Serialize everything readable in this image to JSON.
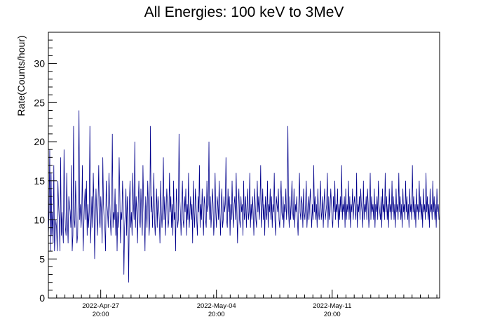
{
  "chart_data": {
    "type": "line",
    "title": "All Energies:  100 keV to 3MeV",
    "xlabel": "",
    "ylabel": "Rate(Counts/hour)",
    "ylim": [
      0,
      34
    ],
    "y_ticks": [
      0,
      5,
      10,
      15,
      20,
      25,
      30
    ],
    "x_range": [
      "2022-Apr-24 16:00",
      "2022-May-18 08:00"
    ],
    "x_ticks": [
      {
        "date": "2022-Apr-27",
        "time": "20:00"
      },
      {
        "date": "2022-May-04",
        "time": "20:00"
      },
      {
        "date": "2022-May-11",
        "time": "20:00"
      }
    ],
    "grid": false,
    "legend": "none",
    "colors": {
      "series": "#00008b",
      "axes": "#000000"
    },
    "series": [
      {
        "x_start": "2022-Apr-24 16:00",
        "x_step": "hour",
        "values": [
          8,
          11,
          19,
          6,
          16,
          8,
          11,
          7,
          17,
          6,
          8,
          10,
          9,
          6,
          15,
          12,
          10,
          6,
          18,
          8,
          11,
          9,
          7,
          19,
          12,
          9,
          8,
          16,
          10,
          7,
          13,
          12,
          11,
          9,
          17,
          6,
          8,
          22,
          10,
          9,
          15,
          11,
          7,
          8,
          14,
          24,
          10,
          12,
          9,
          11,
          17,
          6,
          9,
          12,
          14,
          10,
          15,
          8,
          12,
          9,
          11,
          22,
          7,
          10,
          13,
          9,
          16,
          12,
          5,
          10,
          14,
          11,
          8,
          12,
          17,
          10,
          9,
          13,
          11,
          7,
          18,
          12,
          10,
          9,
          6,
          15,
          12,
          11,
          9,
          16,
          13,
          10,
          8,
          12,
          21,
          9,
          11,
          10,
          14,
          8,
          12,
          6,
          11,
          9,
          18,
          13,
          7,
          11,
          10,
          15,
          12,
          3,
          9,
          11,
          14,
          8,
          13,
          10,
          2,
          12,
          15,
          9,
          11,
          8,
          16,
          12,
          10,
          20,
          9,
          13,
          11,
          7,
          12,
          15,
          10,
          9,
          14,
          11,
          8,
          17,
          12,
          10,
          6,
          13,
          11,
          9,
          15,
          12,
          8,
          10,
          22,
          11,
          13,
          9,
          12,
          16,
          10,
          8,
          11,
          14,
          9,
          13,
          12,
          10,
          7,
          15,
          11,
          9,
          12,
          18,
          10,
          13,
          8,
          11,
          14,
          12,
          9,
          10,
          16,
          11,
          13,
          9,
          12,
          8,
          15,
          10,
          11,
          6,
          14,
          12,
          9,
          10,
          21,
          13,
          11,
          8,
          12,
          15,
          10,
          9,
          13,
          11,
          14,
          8,
          12,
          10,
          16,
          9,
          11,
          13,
          10,
          12,
          7,
          15,
          11,
          9,
          14,
          12,
          10,
          8,
          13,
          11,
          17,
          9,
          12,
          10,
          14,
          11,
          8,
          13,
          12,
          10,
          9,
          15,
          11,
          12,
          20,
          10,
          13,
          9,
          11,
          14,
          12,
          8,
          10,
          16,
          11,
          9,
          13,
          12,
          10,
          15,
          11,
          8,
          12,
          14,
          9,
          10,
          13,
          11,
          12,
          18,
          10,
          9,
          14,
          11,
          13,
          8,
          12,
          10,
          15,
          11,
          9,
          12,
          13,
          10,
          16,
          11,
          7,
          12,
          14,
          10,
          9,
          13,
          11,
          12,
          8,
          15,
          10,
          11,
          13,
          9,
          12,
          14,
          10,
          11,
          16,
          9,
          12,
          10,
          13,
          11,
          8,
          14,
          12,
          10,
          9,
          15,
          11,
          13,
          10,
          12,
          17,
          9,
          11,
          14,
          10,
          12,
          8,
          13,
          11,
          10,
          15,
          9,
          12,
          11,
          14,
          10,
          13,
          9,
          12,
          11,
          16,
          10,
          8,
          13,
          12,
          11,
          14,
          10,
          9,
          12,
          15,
          11,
          10,
          13,
          9,
          12,
          11,
          14,
          10,
          12,
          22,
          11,
          9,
          13,
          10,
          12,
          15,
          11,
          10,
          14,
          9,
          12,
          11,
          13,
          10,
          8,
          12,
          16,
          11,
          10,
          13,
          12,
          9,
          14,
          11,
          10,
          12,
          15,
          9,
          11,
          13,
          10,
          12,
          14,
          11,
          9,
          12,
          10,
          17,
          11,
          13,
          10,
          12,
          9,
          14,
          11,
          10,
          12,
          15,
          10,
          11,
          13,
          9,
          12,
          14,
          10,
          11,
          12,
          16,
          9,
          13,
          10,
          11,
          14,
          12,
          10,
          9,
          13,
          11,
          15,
          10,
          12,
          11,
          14,
          9,
          12,
          10,
          13,
          11,
          17,
          10,
          12,
          11,
          13,
          9,
          14,
          10,
          12,
          11,
          15,
          10,
          13,
          9,
          12,
          11,
          14,
          10,
          12,
          13,
          11,
          10,
          16,
          9,
          12,
          11,
          13,
          10,
          14,
          12,
          11,
          9,
          15,
          10,
          12,
          11,
          13,
          10,
          14,
          12,
          9,
          11,
          16,
          10,
          13,
          11,
          12,
          10,
          14,
          9,
          12,
          11,
          13,
          10,
          15,
          12,
          11,
          10,
          13,
          9,
          14,
          11,
          12,
          10,
          16,
          11,
          13,
          10,
          12,
          9,
          14,
          11,
          12,
          10,
          15,
          11,
          13,
          10,
          12,
          9,
          14,
          11,
          12,
          10,
          16,
          11,
          13,
          10,
          12,
          9,
          14,
          11,
          12,
          10,
          15,
          11,
          13,
          10,
          12,
          9,
          14,
          11,
          12,
          10,
          17,
          11,
          13,
          10,
          12,
          9,
          14,
          11,
          12,
          10,
          15,
          11,
          13,
          10,
          12,
          9,
          14,
          11,
          12,
          10,
          16,
          11,
          13,
          10,
          12,
          9,
          14,
          11,
          12,
          10,
          15,
          11,
          13,
          10,
          12,
          9,
          14,
          11,
          12,
          10
        ]
      }
    ]
  }
}
